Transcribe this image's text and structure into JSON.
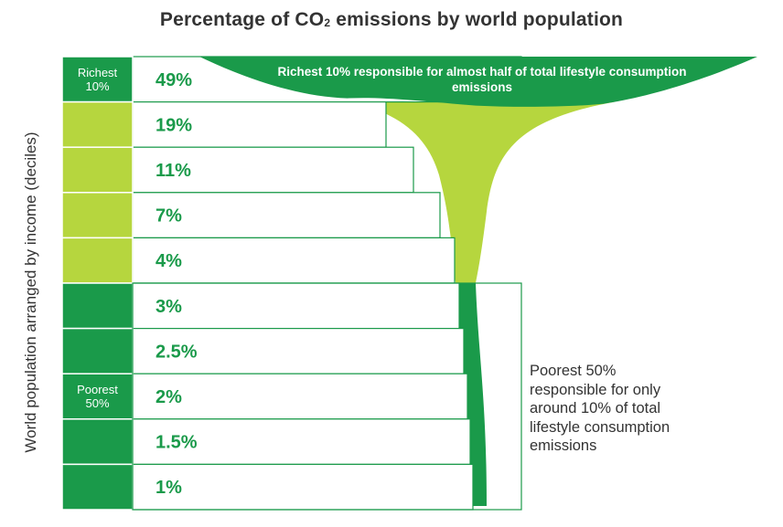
{
  "title": {
    "main": "Percentage of CO",
    "subscript": "2",
    "rest": " emissions by world population"
  },
  "ylabel": "World population arranged by income (deciles)",
  "chart_data": {
    "type": "table",
    "title": "Percentage of CO2 emissions by world population",
    "ylabel": "World population arranged by income (deciles)",
    "categories": [
      "Richest 10%",
      "",
      "",
      "",
      "",
      "",
      "",
      "",
      "",
      ""
    ],
    "values": [
      49,
      19,
      11,
      7,
      4,
      3,
      2.5,
      2,
      1.5,
      1
    ],
    "value_labels": [
      "49%",
      "19%",
      "11%",
      "7%",
      "4%",
      "3%",
      "2.5%",
      "2%",
      "1.5%",
      "1%"
    ],
    "groups": [
      {
        "label_line1": "Richest",
        "label_line2": "10%",
        "deciles": [
          0
        ],
        "color": "#1a9a4a"
      },
      {
        "label_line1": "",
        "label_line2": "",
        "deciles": [
          1,
          2,
          3,
          4
        ],
        "color": "#b6d63e"
      },
      {
        "label_line1": "Poorest",
        "label_line2": "50%",
        "deciles": [
          5,
          6,
          7,
          8,
          9
        ],
        "color": "#1a9a4a"
      }
    ],
    "annotations": {
      "richest": "Richest 10% responsible for almost half of total lifestyle consumption emissions",
      "poorest": "Poorest 50% responsible for only around 10% of total lifestyle consumption emissions"
    }
  },
  "colors": {
    "dark_green": "#1a9a4a",
    "light_green": "#b6d63e",
    "text_dark": "#333333"
  }
}
